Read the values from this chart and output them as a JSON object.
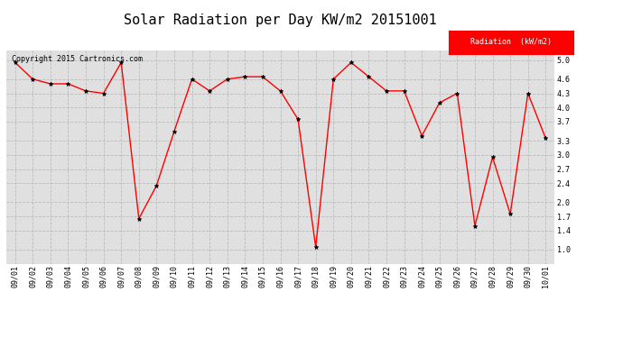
{
  "title": "Solar Radiation per Day KW/m2 20151001",
  "copyright_text": "Copyright 2015 Cartronics.com",
  "legend_label": "Radiation  (kW/m2)",
  "dates": [
    "09/01",
    "09/02",
    "09/03",
    "09/04",
    "09/05",
    "09/06",
    "09/07",
    "09/08",
    "09/09",
    "09/10",
    "09/11",
    "09/12",
    "09/13",
    "09/14",
    "09/15",
    "09/16",
    "09/17",
    "09/18",
    "09/19",
    "09/20",
    "09/21",
    "09/22",
    "09/23",
    "09/24",
    "09/25",
    "09/26",
    "09/27",
    "09/28",
    "09/29",
    "09/30",
    "10/01"
  ],
  "values": [
    4.95,
    4.6,
    4.5,
    4.5,
    4.35,
    4.3,
    4.95,
    1.65,
    2.35,
    3.5,
    4.6,
    4.35,
    4.6,
    4.65,
    4.65,
    4.35,
    3.75,
    1.05,
    4.6,
    4.95,
    4.65,
    4.35,
    4.35,
    3.4,
    4.1,
    4.3,
    1.5,
    2.95,
    1.75,
    4.3,
    3.35
  ],
  "ylim": [
    0.7,
    5.2
  ],
  "yticks": [
    1.0,
    1.4,
    1.7,
    2.0,
    2.4,
    2.7,
    3.0,
    3.3,
    3.7,
    4.0,
    4.3,
    4.6,
    5.0
  ],
  "line_color": "red",
  "marker_color": "black",
  "marker": "*",
  "grid_color": "#bbbbbb",
  "bg_color": "#ffffff",
  "plot_bg_color": "#e0e0e0",
  "title_fontsize": 11,
  "tick_fontsize": 6,
  "copyright_fontsize": 6,
  "legend_fontsize": 6,
  "legend_bg": "red",
  "legend_fg": "white"
}
